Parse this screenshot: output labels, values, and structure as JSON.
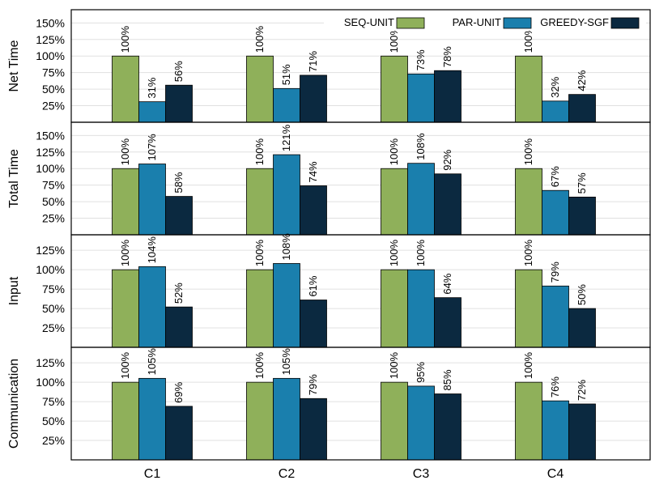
{
  "chart_data": {
    "type": "bar",
    "categories": [
      "C1",
      "C2",
      "C3",
      "C4"
    ],
    "legend": {
      "placement": "top-right",
      "entries": [
        "SEQ-UNIT",
        "PAR-UNIT",
        "GREEDY-SGF"
      ]
    },
    "series_colors": [
      "#8fb05a",
      "#1a7fad",
      "#0b2940"
    ],
    "grid": true,
    "panels": [
      {
        "ylabel": "Net Time",
        "ylim": [
          0,
          170
        ],
        "yticks": [
          "25%",
          "50%",
          "75%",
          "100%",
          "125%",
          "150%"
        ],
        "ytick_values": [
          25,
          50,
          75,
          100,
          125,
          150
        ],
        "series": [
          {
            "name": "SEQ-UNIT",
            "values": [
              100,
              100,
              100,
              100
            ],
            "labels": [
              "100%",
              "100%",
              "100%",
              "100%"
            ]
          },
          {
            "name": "PAR-UNIT",
            "values": [
              31,
              51,
              73,
              32
            ],
            "labels": [
              "31%",
              "51%",
              "73%",
              "32%"
            ]
          },
          {
            "name": "GREEDY-SGF",
            "values": [
              56,
              71,
              78,
              42
            ],
            "labels": [
              "56%",
              "71%",
              "78%",
              "42%"
            ]
          }
        ]
      },
      {
        "ylabel": "Total Time",
        "ylim": [
          0,
          170
        ],
        "yticks": [
          "25%",
          "50%",
          "75%",
          "100%",
          "125%",
          "150%"
        ],
        "ytick_values": [
          25,
          50,
          75,
          100,
          125,
          150
        ],
        "series": [
          {
            "name": "SEQ-UNIT",
            "values": [
              100,
              100,
              100,
              100
            ],
            "labels": [
              "100%",
              "100%",
              "100%",
              "100%"
            ]
          },
          {
            "name": "PAR-UNIT",
            "values": [
              107,
              121,
              108,
              67
            ],
            "labels": [
              "107%",
              "121%",
              "108%",
              "67%"
            ]
          },
          {
            "name": "GREEDY-SGF",
            "values": [
              58,
              74,
              92,
              57
            ],
            "labels": [
              "58%",
              "74%",
              "92%",
              "57%"
            ]
          }
        ]
      },
      {
        "ylabel": "Input",
        "ylim": [
          0,
          145
        ],
        "yticks": [
          "25%",
          "50%",
          "75%",
          "100%",
          "125%"
        ],
        "ytick_values": [
          25,
          50,
          75,
          100,
          125
        ],
        "series": [
          {
            "name": "SEQ-UNIT",
            "values": [
              100,
              100,
              100,
              100
            ],
            "labels": [
              "100%",
              "100%",
              "100%",
              "100%"
            ]
          },
          {
            "name": "PAR-UNIT",
            "values": [
              104,
              108,
              100,
              79
            ],
            "labels": [
              "104%",
              "108%",
              "100%",
              "79%"
            ]
          },
          {
            "name": "GREEDY-SGF",
            "values": [
              52,
              61,
              64,
              50
            ],
            "labels": [
              "52%",
              "61%",
              "64%",
              "50%"
            ]
          }
        ]
      },
      {
        "ylabel": "Communication",
        "ylim": [
          0,
          145
        ],
        "yticks": [
          "25%",
          "50%",
          "75%",
          "100%",
          "125%"
        ],
        "ytick_values": [
          25,
          50,
          75,
          100,
          125
        ],
        "series": [
          {
            "name": "SEQ-UNIT",
            "values": [
              100,
              100,
              100,
              100
            ],
            "labels": [
              "100%",
              "100%",
              "100%",
              "100%"
            ]
          },
          {
            "name": "PAR-UNIT",
            "values": [
              105,
              105,
              95,
              76
            ],
            "labels": [
              "105%",
              "105%",
              "95%",
              "76%"
            ]
          },
          {
            "name": "GREEDY-SGF",
            "values": [
              69,
              79,
              85,
              72
            ],
            "labels": [
              "69%",
              "79%",
              "85%",
              "72%"
            ]
          }
        ]
      }
    ]
  }
}
